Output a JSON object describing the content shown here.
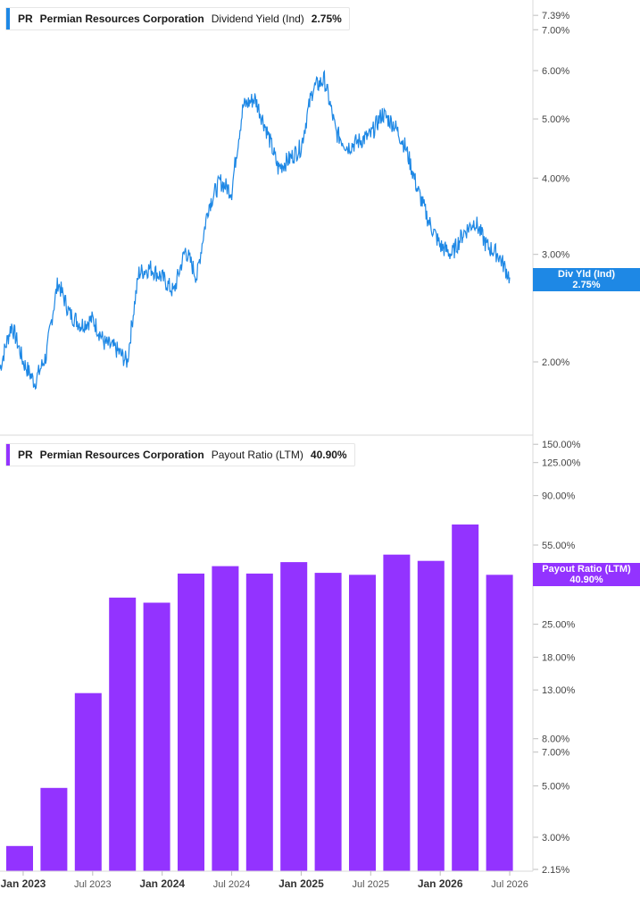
{
  "colors": {
    "line": "#1e88e5",
    "bar": "#9333ff",
    "grid": "#e0e0e0",
    "axis_text": "#444444"
  },
  "top_legend": {
    "ticker": "PR",
    "company": "Permian Resources Corporation",
    "metric": "Dividend Yield (Ind)",
    "value": "2.75%"
  },
  "top_tag": {
    "label": "Div Yld (Ind)",
    "value": "2.75%"
  },
  "bottom_legend": {
    "ticker": "PR",
    "company": "Permian Resources Corporation",
    "metric": "Payout Ratio (LTM)",
    "value": "40.90%"
  },
  "bottom_tag": {
    "label": "Payout Ratio (LTM)",
    "value": "40.90%"
  },
  "chart_data": [
    {
      "type": "line",
      "series": [
        {
          "name": "Dividend Yield (Ind)"
        }
      ],
      "y_scale": "log",
      "y_ticks": [
        {
          "label": "7.39%",
          "value": 7.39
        },
        {
          "label": "7.00%",
          "value": 7.0
        },
        {
          "label": "6.00%",
          "value": 6.0
        },
        {
          "label": "5.00%",
          "value": 5.0
        },
        {
          "label": "4.00%",
          "value": 4.0
        },
        {
          "label": "3.00%",
          "value": 3.0
        },
        {
          "label": "2.00%",
          "value": 2.0
        }
      ],
      "x": [
        "2022-11",
        "2022-12",
        "2023-01",
        "2023-02",
        "2023-03",
        "2023-04",
        "2023-05",
        "2023-06",
        "2023-07",
        "2023-08",
        "2023-09",
        "2023-10",
        "2023-11",
        "2023-12",
        "2024-01",
        "2024-02",
        "2024-03",
        "2024-04",
        "2024-05",
        "2024-06",
        "2024-07",
        "2024-08",
        "2024-09",
        "2024-10",
        "2024-11",
        "2024-12",
        "2025-01",
        "2025-02",
        "2025-03",
        "2025-04",
        "2025-05",
        "2025-06",
        "2025-07",
        "2025-08",
        "2025-09",
        "2025-10",
        "2025-11",
        "2025-12",
        "2026-01",
        "2026-02",
        "2026-03",
        "2026-04",
        "2026-05",
        "2026-06",
        "2026-07"
      ],
      "values": [
        1.95,
        2.3,
        2.0,
        1.85,
        2.05,
        2.7,
        2.4,
        2.3,
        2.35,
        2.15,
        2.1,
        2.0,
        2.8,
        2.85,
        2.75,
        2.6,
        3.05,
        2.75,
        3.6,
        3.95,
        3.8,
        5.25,
        5.4,
        4.8,
        4.15,
        4.3,
        4.5,
        5.6,
        5.8,
        4.75,
        4.5,
        4.6,
        4.7,
        5.1,
        4.9,
        4.5,
        3.85,
        3.4,
        3.1,
        3.0,
        3.25,
        3.4,
        3.1,
        3.0,
        2.75
      ]
    },
    {
      "type": "bar",
      "series": [
        {
          "name": "Payout Ratio (LTM)"
        }
      ],
      "y_scale": "log",
      "y_ticks": [
        {
          "label": "150.00%",
          "value": 150
        },
        {
          "label": "125.00%",
          "value": 125
        },
        {
          "label": "90.00%",
          "value": 90
        },
        {
          "label": "55.00%",
          "value": 55
        },
        {
          "label": "25.00%",
          "value": 25
        },
        {
          "label": "18.00%",
          "value": 18
        },
        {
          "label": "13.00%",
          "value": 13
        },
        {
          "label": "8.00%",
          "value": 8
        },
        {
          "label": "7.00%",
          "value": 7
        },
        {
          "label": "5.00%",
          "value": 5
        },
        {
          "label": "3.00%",
          "value": 3
        },
        {
          "label": "2.15%",
          "value": 2.15
        }
      ],
      "categories": [
        "2022-Q4",
        "2023-Q1",
        "2023-Q2",
        "2023-Q3",
        "2023-Q4",
        "2024-Q1",
        "2024-Q2",
        "2024-Q3",
        "2024-Q4",
        "2025-Q1",
        "2025-Q2",
        "2025-Q3",
        "2025-Q4",
        "2026-Q1",
        "2026-Q2"
      ],
      "values": [
        2.75,
        4.9,
        12.6,
        32.6,
        31.0,
        41.4,
        44.6,
        41.4,
        46.4,
        41.7,
        40.9,
        50.0,
        47.0,
        67.5,
        40.9
      ]
    }
  ],
  "x_axis": {
    "ticks": [
      {
        "label": "Jan 2023",
        "date": "2023-01",
        "bold": true
      },
      {
        "label": "Jul 2023",
        "date": "2023-07",
        "bold": false
      },
      {
        "label": "Jan 2024",
        "date": "2024-01",
        "bold": true
      },
      {
        "label": "Jul 2024",
        "date": "2024-07",
        "bold": false
      },
      {
        "label": "Jan 2025",
        "date": "2025-01",
        "bold": true
      },
      {
        "label": "Jul 2025",
        "date": "2025-07",
        "bold": false
      },
      {
        "label": "Jan 2026",
        "date": "2026-01",
        "bold": true
      },
      {
        "label": "Jul 2026",
        "date": "2026-07",
        "bold": false
      }
    ]
  }
}
